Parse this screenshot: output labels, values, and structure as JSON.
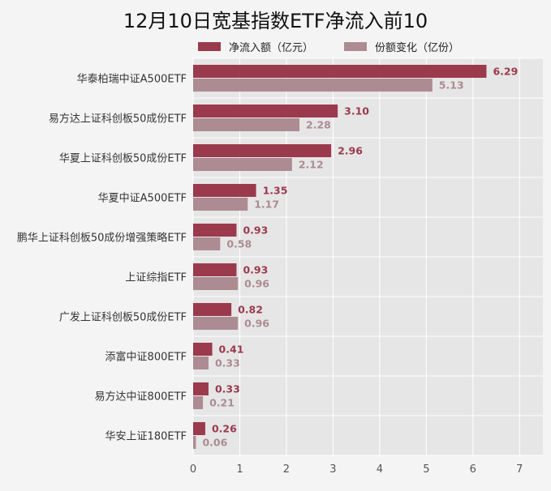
{
  "colors": {
    "net": "#9b3a4d",
    "share": "#ad8b93",
    "plot_bg": "#e6e6e6",
    "grid": "#ffffff"
  },
  "chart_data": {
    "type": "bar",
    "orientation": "horizontal",
    "title": "12月10日宽基指数ETF净流入前10",
    "categories": [
      "华泰柏瑞中证A500ETF",
      "易方达上证科创板50成份ETF",
      "华夏上证科创板50成份ETF",
      "华夏中证A500ETF",
      "鹏华上证科创板50成份增强策略ETF",
      "上证综指ETF",
      "广发上证科创板50成份ETF",
      "添富中证800ETF",
      "易方达中证800ETF",
      "华安上证180ETF"
    ],
    "series": [
      {
        "name": "净流入额（亿元）",
        "values": [
          6.29,
          3.1,
          2.96,
          1.35,
          0.93,
          0.93,
          0.82,
          0.41,
          0.33,
          0.26
        ],
        "labels": [
          "6.29",
          "3.10",
          "2.96",
          "1.35",
          "0.93",
          "0.93",
          "0.82",
          "0.41",
          "0.33",
          "0.26"
        ]
      },
      {
        "name": "份额变化（亿份）",
        "values": [
          5.13,
          2.28,
          2.12,
          1.17,
          0.58,
          0.96,
          0.96,
          0.33,
          0.21,
          0.06
        ],
        "labels": [
          "5.13",
          "2.28",
          "2.12",
          "1.17",
          "0.58",
          "0.96",
          "0.96",
          "0.33",
          "0.21",
          "0.06"
        ]
      }
    ],
    "xlim": [
      0,
      7.5
    ],
    "x_ticks": [
      "0",
      "1",
      "2",
      "3",
      "4",
      "5",
      "6",
      "7"
    ],
    "grid": true,
    "legend_position": "top"
  }
}
